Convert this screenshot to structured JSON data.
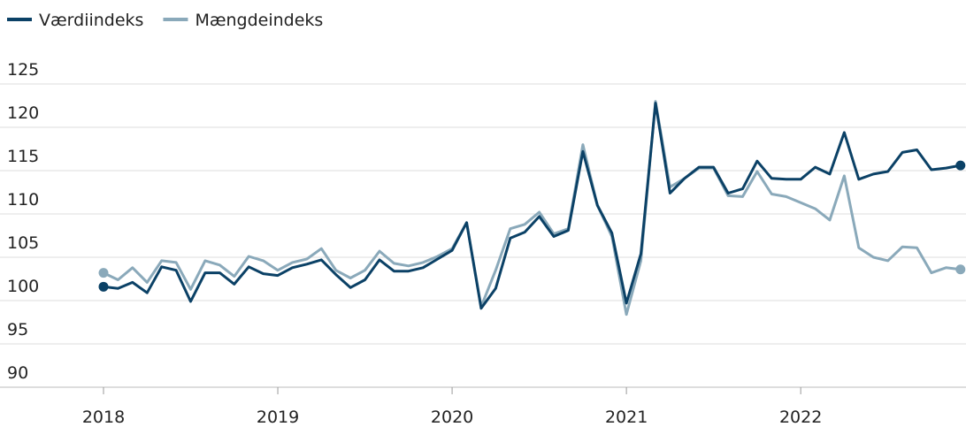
{
  "chart_data": {
    "type": "line",
    "categories": [
      "2018",
      null,
      null,
      null,
      null,
      null,
      null,
      null,
      null,
      null,
      null,
      null,
      "2019",
      null,
      null,
      null,
      null,
      null,
      null,
      null,
      null,
      null,
      null,
      null,
      "2020",
      null,
      null,
      null,
      null,
      null,
      null,
      null,
      null,
      null,
      null,
      null,
      "2021",
      null,
      null,
      null,
      null,
      null,
      null,
      null,
      null,
      null,
      null,
      null,
      "2022",
      null,
      null,
      null,
      null,
      null,
      null,
      null,
      null,
      null,
      null,
      null
    ],
    "series": [
      {
        "name": "Værdiindeks",
        "color": "#0b4166",
        "values": [
          101.6,
          101.4,
          102.1,
          100.9,
          103.9,
          103.5,
          99.9,
          103.2,
          103.2,
          101.9,
          103.9,
          103.1,
          102.9,
          103.8,
          104.2,
          104.7,
          103.0,
          101.5,
          102.4,
          104.7,
          103.4,
          103.4,
          103.8,
          104.8,
          105.8,
          109.0,
          99.1,
          101.4,
          107.2,
          107.9,
          109.7,
          107.4,
          108.1,
          117.2,
          111.0,
          107.8,
          99.7,
          105.4,
          122.8,
          112.4,
          114.1,
          115.4,
          115.4,
          112.4,
          112.9,
          116.1,
          114.1,
          114.0,
          114.0,
          115.4,
          114.6,
          119.4,
          114.0,
          114.6,
          114.9,
          117.1,
          117.4,
          115.1,
          115.3,
          115.6
        ]
      },
      {
        "name": "Mængdeindeks",
        "color": "#8aa9ba",
        "values": [
          103.2,
          102.4,
          103.8,
          102.1,
          104.6,
          104.4,
          101.3,
          104.6,
          104.1,
          102.8,
          105.1,
          104.6,
          103.5,
          104.4,
          104.8,
          106.0,
          103.5,
          102.6,
          103.5,
          105.7,
          104.3,
          104.0,
          104.4,
          105.1,
          106.0,
          109.0,
          99.3,
          103.5,
          108.3,
          108.8,
          110.2,
          107.7,
          108.3,
          118.0,
          111.0,
          107.4,
          98.4,
          104.6,
          123.0,
          113.1,
          114.1,
          115.3,
          115.3,
          112.1,
          112.0,
          114.9,
          112.3,
          112.0,
          111.3,
          110.6,
          109.3,
          114.4,
          106.1,
          105.0,
          104.6,
          106.2,
          106.1,
          103.2,
          103.8,
          103.6
        ]
      }
    ],
    "ylim": [
      90,
      125
    ],
    "yticks": [
      90,
      95,
      100,
      105,
      110,
      115,
      120,
      125
    ],
    "grid": true,
    "legend": "top-left"
  }
}
